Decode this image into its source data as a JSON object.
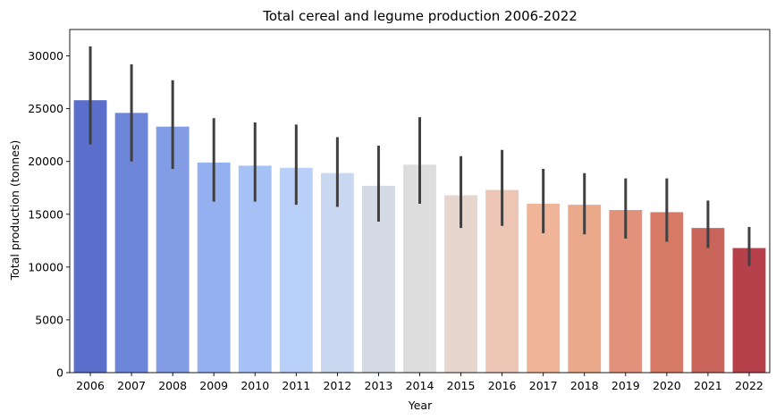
{
  "chart_data": {
    "type": "bar",
    "title": "Total cereal and legume production 2006-2022",
    "xlabel": "Year",
    "ylabel": "Total production (tonnes)",
    "categories": [
      "2006",
      "2007",
      "2008",
      "2009",
      "2010",
      "2011",
      "2012",
      "2013",
      "2014",
      "2015",
      "2016",
      "2017",
      "2018",
      "2019",
      "2020",
      "2021",
      "2022"
    ],
    "values": [
      25800,
      24600,
      23300,
      19900,
      19600,
      19400,
      18900,
      17700,
      19700,
      16800,
      17300,
      16000,
      15900,
      15400,
      15200,
      13700,
      11800
    ],
    "error_low": [
      21600,
      20000,
      19300,
      16200,
      16200,
      15900,
      15700,
      14300,
      16000,
      13700,
      13900,
      13200,
      13100,
      12700,
      12400,
      11800,
      10100
    ],
    "error_high": [
      30900,
      29200,
      27700,
      24100,
      23700,
      23500,
      22300,
      21500,
      24200,
      20500,
      21100,
      19300,
      18900,
      18400,
      18400,
      16300,
      13800
    ],
    "colors": [
      "#5a6fcb",
      "#6e86d9",
      "#839ce6",
      "#94b0f0",
      "#a6c1f6",
      "#b9d0f9",
      "#c9d8f0",
      "#d4dbe6",
      "#dddddd",
      "#e6d6cd",
      "#edc5b4",
      "#f0b598",
      "#eba98c",
      "#e2917a",
      "#d67a66",
      "#c86459",
      "#b6414a"
    ],
    "ylim": [
      0,
      32500
    ],
    "yticks": [
      0,
      5000,
      10000,
      15000,
      20000,
      25000,
      30000
    ],
    "grid": false,
    "legend": "none"
  }
}
